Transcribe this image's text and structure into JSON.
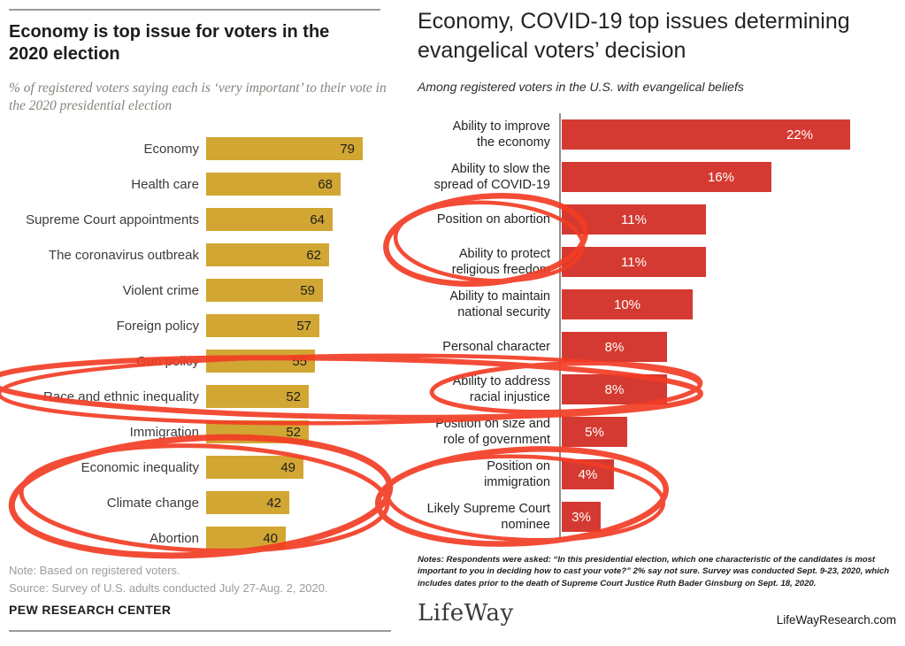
{
  "chart_data": [
    {
      "type": "bar",
      "orientation": "horizontal",
      "title": "Economy is top issue for voters in the 2020 election",
      "subtitle": "% of registered voters saying each is ‘very important’ to their vote in the 2020 presidential election",
      "categories": [
        "Economy",
        "Health care",
        "Supreme Court appointments",
        "The coronavirus outbreak",
        "Violent crime",
        "Foreign policy",
        "Gun policy",
        "Race and ethnic inequality",
        "Immigration",
        "Economic inequality",
        "Climate change",
        "Abortion"
      ],
      "values": [
        79,
        68,
        64,
        62,
        59,
        57,
        55,
        52,
        52,
        49,
        42,
        40
      ],
      "value_suffix": "",
      "bar_color": "#d2a633",
      "legend": "none",
      "grid": false,
      "note": "Note: Based on registered voters.",
      "source": "Source: Survey of U.S. adults conducted July 27-Aug. 2, 2020.",
      "brand": "PEW RESEARCH CENTER"
    },
    {
      "type": "bar",
      "orientation": "horizontal",
      "title": "Economy, COVID-19 top issues determining evangelical voters’ decision",
      "subtitle": "Among registered voters in the U.S. with evangelical beliefs",
      "categories": [
        "Ability to improve the economy",
        "Ability to slow the spread of COVID-19",
        "Position on abortion",
        "Ability to protect religious freedom",
        "Ability to maintain national security",
        "Personal character",
        "Ability to address racial injustice",
        "Position on size and role of government",
        "Position on immigration",
        "Likely Supreme Court nominee"
      ],
      "label_lines": [
        [
          "Ability to improve",
          "the economy"
        ],
        [
          "Ability to slow the",
          "spread of COVID-19"
        ],
        [
          "Position on abortion"
        ],
        [
          "Ability to protect",
          "religious freedom"
        ],
        [
          "Ability to maintain",
          "national security"
        ],
        [
          "Personal character"
        ],
        [
          "Ability to address",
          "racial injustice"
        ],
        [
          "Position on size and",
          "role of government"
        ],
        [
          "Position on",
          "immigration"
        ],
        [
          "Likely Supreme Court",
          "nominee"
        ]
      ],
      "values": [
        22,
        16,
        11,
        11,
        10,
        8,
        8,
        5,
        4,
        3
      ],
      "value_suffix": "%",
      "bar_color": "#d43a31",
      "legend": "none",
      "grid": false,
      "notes": "Notes: Respondents were asked: “In this presidential election, which one characteristic of the candidates is most important to you in deciding how to cast your vote?”  2% say not sure. Survey was conducted Sept. 9-23, 2020, which includes dates prior to the death of Supreme Court Justice Ruth Bader Ginsburg on Sept. 18, 2020.",
      "brand": "LifeWay",
      "website": "LifeWayResearch.com"
    }
  ],
  "annotations": {
    "color": "#f23d24",
    "circles": [
      {
        "id": "circle-racial",
        "targets": "Race and ethnic inequality (Pew) + Ability to address racial injustice (LifeWay)"
      },
      {
        "id": "circle-economic-climate-abortion",
        "targets": "Economic inequality, Climate change, Abortion (Pew)"
      },
      {
        "id": "circle-abortion-religious-freedom",
        "targets": "Position on abortion + Ability to protect religious freedom (LifeWay)"
      },
      {
        "id": "circle-immigration-scotus",
        "targets": "Position on immigration + Likely Supreme Court nominee (LifeWay)"
      }
    ]
  }
}
